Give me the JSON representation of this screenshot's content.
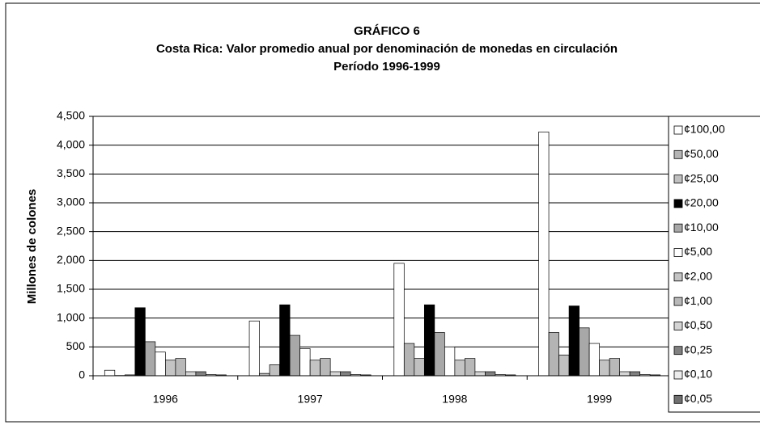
{
  "chart_data": {
    "type": "bar",
    "title": "GRÁFICO 6",
    "subtitle": [
      "Costa Rica: Valor promedio anual por denominación de monedas en circulación",
      "Período 1996-1999"
    ],
    "y_label": "Millones de colones",
    "categories": [
      "1996",
      "1997",
      "1998",
      "1999"
    ],
    "series": [
      {
        "name": "¢100,00",
        "color": "#ffffff",
        "values": [
          95,
          950,
          1950,
          4230
        ]
      },
      {
        "name": "¢50,00",
        "color": "#b4b4b4",
        "values": [
          5,
          40,
          560,
          750
        ]
      },
      {
        "name": "¢25,00",
        "color": "#c0c0c0",
        "values": [
          15,
          190,
          300,
          360
        ]
      },
      {
        "name": "¢20,00",
        "color": "#000000",
        "values": [
          1180,
          1230,
          1230,
          1210
        ]
      },
      {
        "name": "¢10,00",
        "color": "#a8a8a8",
        "values": [
          590,
          700,
          750,
          830
        ]
      },
      {
        "name": "¢5,00",
        "color": "#ffffff",
        "values": [
          410,
          470,
          500,
          560
        ]
      },
      {
        "name": "¢2,00",
        "color": "#c4c4c4",
        "values": [
          270,
          270,
          270,
          270
        ]
      },
      {
        "name": "¢1,00",
        "color": "#b8b8b8",
        "values": [
          300,
          300,
          300,
          300
        ]
      },
      {
        "name": "¢0,50",
        "color": "#d4d4d4",
        "values": [
          70,
          70,
          70,
          70
        ]
      },
      {
        "name": "¢0,25",
        "color": "#808080",
        "values": [
          70,
          70,
          70,
          70
        ]
      },
      {
        "name": "¢0,10",
        "color": "#ececec",
        "values": [
          20,
          20,
          20,
          20
        ]
      },
      {
        "name": "¢0,05",
        "color": "#707070",
        "values": [
          15,
          15,
          15,
          15
        ]
      }
    ],
    "ylim": [
      0,
      4500
    ],
    "yticks": [
      0,
      500,
      {
        "value": 1000,
        "label": "1,000"
      },
      {
        "value": 1500,
        "label": "1,500"
      },
      {
        "value": 2000,
        "label": "2,000"
      },
      {
        "value": 2500,
        "label": "2,500"
      },
      {
        "value": 3000,
        "label": "3,000"
      },
      {
        "value": 3500,
        "label": "3,500"
      },
      {
        "value": 4000,
        "label": "4,000"
      },
      {
        "value": 4500,
        "label": "4,500"
      }
    ],
    "grid": true,
    "legend": "right"
  }
}
